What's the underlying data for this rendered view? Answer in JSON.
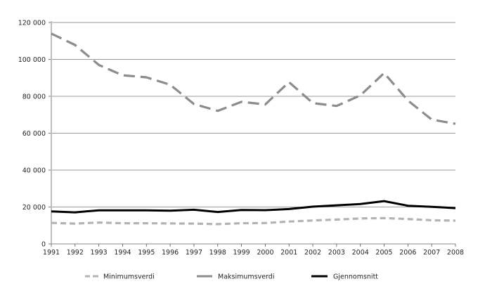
{
  "chart_data": {
    "type": "line",
    "title": "",
    "xlabel": "",
    "ylabel": "",
    "x": [
      "1991",
      "1992",
      "1993",
      "1994",
      "1995",
      "1996",
      "1997",
      "1998",
      "1999",
      "2000",
      "2001",
      "2002",
      "2003",
      "2004",
      "2005",
      "2006",
      "2007",
      "2008"
    ],
    "ylim": [
      0,
      120000
    ],
    "yticks": [
      0,
      20000,
      40000,
      60000,
      80000,
      100000,
      120000
    ],
    "ytick_labels": [
      "0",
      "20 000",
      "40 000",
      "60 000",
      "80 000",
      "100 000",
      "120 000"
    ],
    "grid": true,
    "legend_position": "bottom",
    "series": [
      {
        "name": "Minimumsverdi",
        "style": "dashed",
        "color": "#b3b3b3",
        "values": [
          11400,
          11000,
          11600,
          11200,
          11200,
          11100,
          11000,
          10700,
          11200,
          11300,
          12100,
          12700,
          13200,
          13800,
          14000,
          13500,
          12800,
          12600
        ]
      },
      {
        "name": "Maksimumsverdi",
        "style": "dashed",
        "color": "#8c8c8c",
        "values": [
          114000,
          107800,
          97000,
          91400,
          90300,
          86300,
          75800,
          72100,
          77000,
          75600,
          87700,
          76300,
          74800,
          80500,
          92600,
          77700,
          67400,
          65100
        ]
      },
      {
        "name": "Gjennomsnitt",
        "style": "solid",
        "color": "#000000",
        "values": [
          17600,
          17100,
          18200,
          18200,
          18200,
          18000,
          18500,
          17300,
          18400,
          18300,
          18900,
          20200,
          20900,
          21600,
          23200,
          20700,
          20100,
          19400
        ]
      }
    ]
  },
  "legend": {
    "items": [
      {
        "label": "Minimumsverdi"
      },
      {
        "label": "Maksimumsverdi"
      },
      {
        "label": "Gjennomsnitt"
      }
    ]
  }
}
